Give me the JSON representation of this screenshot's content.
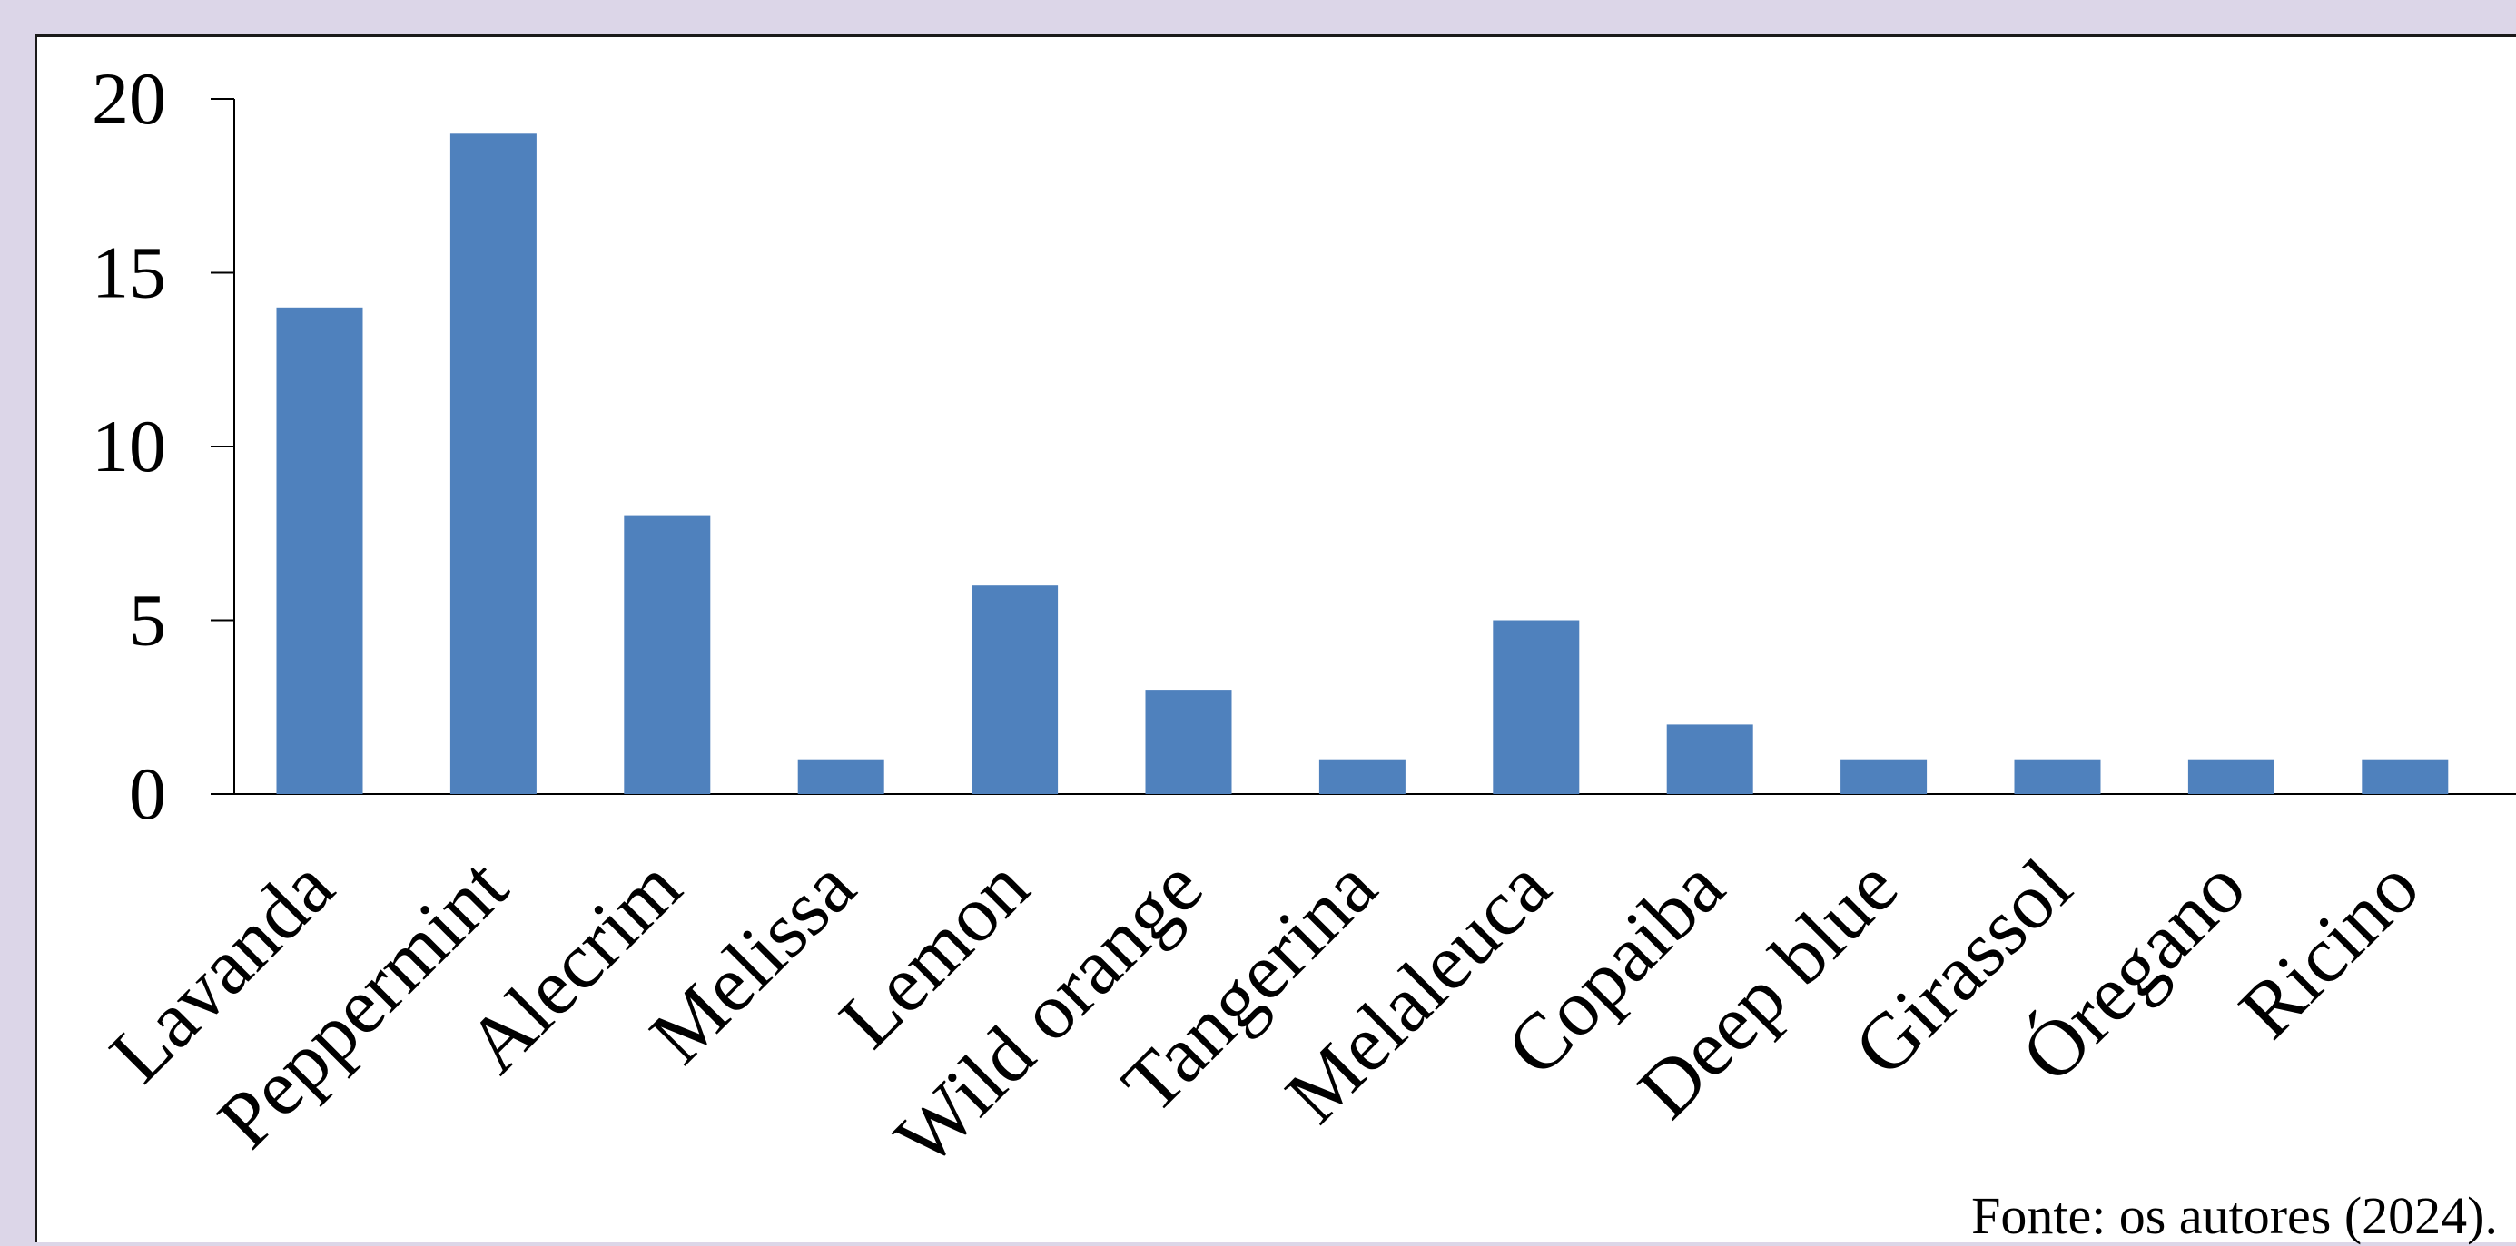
{
  "chart_data": {
    "type": "bar",
    "categories": [
      "Lavanda",
      "Peppermint",
      "Alecrim",
      "Melissa",
      "Lemon",
      "Wild orange",
      "Tangerina",
      "Melaleuca",
      "Copaiba",
      "Deep blue",
      "Girassol",
      "Óregano",
      "Ricino"
    ],
    "values": [
      14,
      19,
      8,
      1,
      6,
      3,
      1,
      5,
      2,
      1,
      1,
      1,
      1
    ],
    "ylim": [
      0,
      20
    ],
    "yticks": [
      0,
      5,
      10,
      15,
      20
    ],
    "bar_color": "#4f81bd",
    "grid": false,
    "legend": "none"
  },
  "source_note": "Fonte: os autores (2024)."
}
